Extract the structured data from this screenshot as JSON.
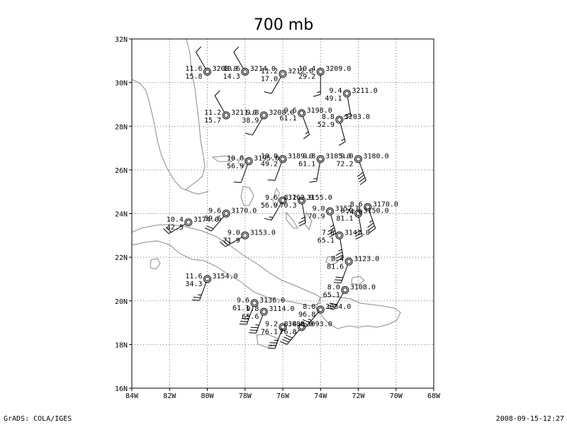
{
  "title": "700 mb",
  "footer": {
    "left": "GrADS: COLA/IGES",
    "right": "2008-09-15-12:27"
  },
  "map": {
    "lon_range": [
      -84,
      -68
    ],
    "lat_range": [
      16,
      32
    ],
    "x_ticks": [
      {
        "lon": -84,
        "label": "84W"
      },
      {
        "lon": -82,
        "label": "82W"
      },
      {
        "lon": -80,
        "label": "80W"
      },
      {
        "lon": -78,
        "label": "78W"
      },
      {
        "lon": -76,
        "label": "76W"
      },
      {
        "lon": -74,
        "label": "74W"
      },
      {
        "lon": -72,
        "label": "72W"
      },
      {
        "lon": -70,
        "label": "70W"
      },
      {
        "lon": -68,
        "label": "68W"
      }
    ],
    "y_ticks": [
      {
        "lat": 16,
        "label": "16N"
      },
      {
        "lat": 18,
        "label": "18N"
      },
      {
        "lat": 20,
        "label": "20N"
      },
      {
        "lat": 22,
        "label": "22N"
      },
      {
        "lat": 24,
        "label": "24N"
      },
      {
        "lat": 26,
        "label": "26N"
      },
      {
        "lat": 28,
        "label": "28N"
      },
      {
        "lat": 30,
        "label": "30N"
      },
      {
        "lat": 32,
        "label": "32N"
      }
    ],
    "grid": "dotted"
  },
  "stations": [
    {
      "lon": -80.0,
      "lat": 30.5,
      "t": "11.6",
      "rh": "15.8",
      "h": "3208.0",
      "wd": 330,
      "ws": 10
    },
    {
      "lon": -78.0,
      "lat": 30.5,
      "t": "10.6",
      "rh": "14.3",
      "h": "3214.0",
      "wd": 330,
      "ws": 10
    },
    {
      "lon": -76.0,
      "lat": 30.4,
      "t": "11.2",
      "rh": "17.0",
      "h": "3212.0",
      "wd": 210,
      "ws": 10
    },
    {
      "lon": -74.0,
      "lat": 30.5,
      "t": "10.4",
      "rh": "29.2",
      "h": "3209.0",
      "wd": 180,
      "ws": 15
    },
    {
      "lon": -72.6,
      "lat": 29.5,
      "t": "9.4",
      "rh": "49.1",
      "h": "3211.0",
      "wd": 170,
      "ws": 20
    },
    {
      "lon": -79.0,
      "lat": 28.5,
      "t": "11.2",
      "rh": "15.7",
      "h": "3211.0",
      "wd": 330,
      "ws": 10
    },
    {
      "lon": -77.0,
      "lat": 28.5,
      "t": "9.8",
      "rh": "38.9",
      "h": "3208.0",
      "wd": 210,
      "ws": 10
    },
    {
      "lon": -75.0,
      "lat": 28.6,
      "t": "9.6",
      "rh": "61.1",
      "h": "3198.0",
      "wd": 160,
      "ws": 15
    },
    {
      "lon": -73.0,
      "lat": 28.3,
      "t": "8.8",
      "rh": "52.9",
      "h": "3203.0",
      "wd": 165,
      "ws": 15
    },
    {
      "lon": -77.8,
      "lat": 26.4,
      "t": "10.0",
      "rh": "56.9",
      "h": "3195.0",
      "wd": 200,
      "ws": 10
    },
    {
      "lon": -76.0,
      "lat": 26.5,
      "t": "10.0",
      "rh": "49.2",
      "h": "3189.0",
      "wd": 200,
      "ws": 10
    },
    {
      "lon": -74.0,
      "lat": 26.5,
      "t": "9.8",
      "rh": "61.1",
      "h": "3185.0",
      "wd": 190,
      "ws": 15
    },
    {
      "lon": -72.0,
      "lat": 26.5,
      "t": "9.0",
      "rh": "72.2",
      "h": "3180.0",
      "wd": 160,
      "ws": 40
    },
    {
      "lon": -76.0,
      "lat": 24.6,
      "t": "9.6",
      "rh": "56.9",
      "h": "3162.0",
      "wd": 210,
      "ws": 15
    },
    {
      "lon": -75.0,
      "lat": 24.6,
      "t": "8.2",
      "rh": "70.3",
      "h": "3155.0",
      "wd": 170,
      "ws": 25
    },
    {
      "lon": -73.5,
      "lat": 24.1,
      "t": "9.0",
      "rh": "70.9",
      "h": "3157.0",
      "wd": 165,
      "ws": 35
    },
    {
      "lon": -72.0,
      "lat": 24.0,
      "t": "8.0",
      "rh": "81.1",
      "h": "3150.0",
      "wd": 170,
      "ws": 30
    },
    {
      "lon": -71.5,
      "lat": 24.3,
      "t": "8.6",
      "rh": "74.0",
      "h": "3170.0",
      "wd": 160,
      "ws": 35
    },
    {
      "lon": -79.0,
      "lat": 24.0,
      "t": "9.6",
      "rh": "39.6",
      "h": "3170.0",
      "wd": 220,
      "ws": 20
    },
    {
      "lon": -81.0,
      "lat": 23.6,
      "t": "10.4",
      "rh": "42.5",
      "h": "3174.0",
      "wd": 240,
      "ws": 20
    },
    {
      "lon": -78.0,
      "lat": 23.0,
      "t": "9.0",
      "rh": "71.9",
      "h": "3153.0",
      "wd": 240,
      "ws": 30
    },
    {
      "lon": -73.0,
      "lat": 23.0,
      "t": "7.6",
      "rh": "65.1",
      "h": "3142.0",
      "wd": 170,
      "ws": 35
    },
    {
      "lon": -72.5,
      "lat": 21.8,
      "t": "8.4",
      "rh": "81.6",
      "h": "3123.0",
      "wd": 200,
      "ws": 30
    },
    {
      "lon": -80.0,
      "lat": 21.0,
      "t": "11.6",
      "rh": "34.3",
      "h": "3154.0",
      "wd": 200,
      "ws": 25
    },
    {
      "lon": -72.7,
      "lat": 20.5,
      "t": "8.0",
      "rh": "65.1",
      "h": "3108.0",
      "wd": 210,
      "ws": 30
    },
    {
      "lon": -77.5,
      "lat": 19.9,
      "t": "9.6",
      "rh": "61.1",
      "h": "3136.0",
      "wd": 200,
      "ws": 35
    },
    {
      "lon": -77.0,
      "lat": 19.5,
      "t": "9.8",
      "rh": "65.6",
      "h": "3114.0",
      "wd": 200,
      "ws": 35
    },
    {
      "lon": -74.0,
      "lat": 19.6,
      "t": "8.0",
      "rh": "96.8",
      "h": "3084.0",
      "wd": 220,
      "ws": 35
    },
    {
      "lon": -76.0,
      "lat": 18.8,
      "t": "9.2",
      "rh": "76.1",
      "h": "3088.0",
      "wd": 200,
      "ws": 35
    },
    {
      "lon": -75.0,
      "lat": 18.8,
      "t": "8.4",
      "rh": "76.8",
      "h": "3093.0",
      "wd": 220,
      "ws": 40
    }
  ]
}
